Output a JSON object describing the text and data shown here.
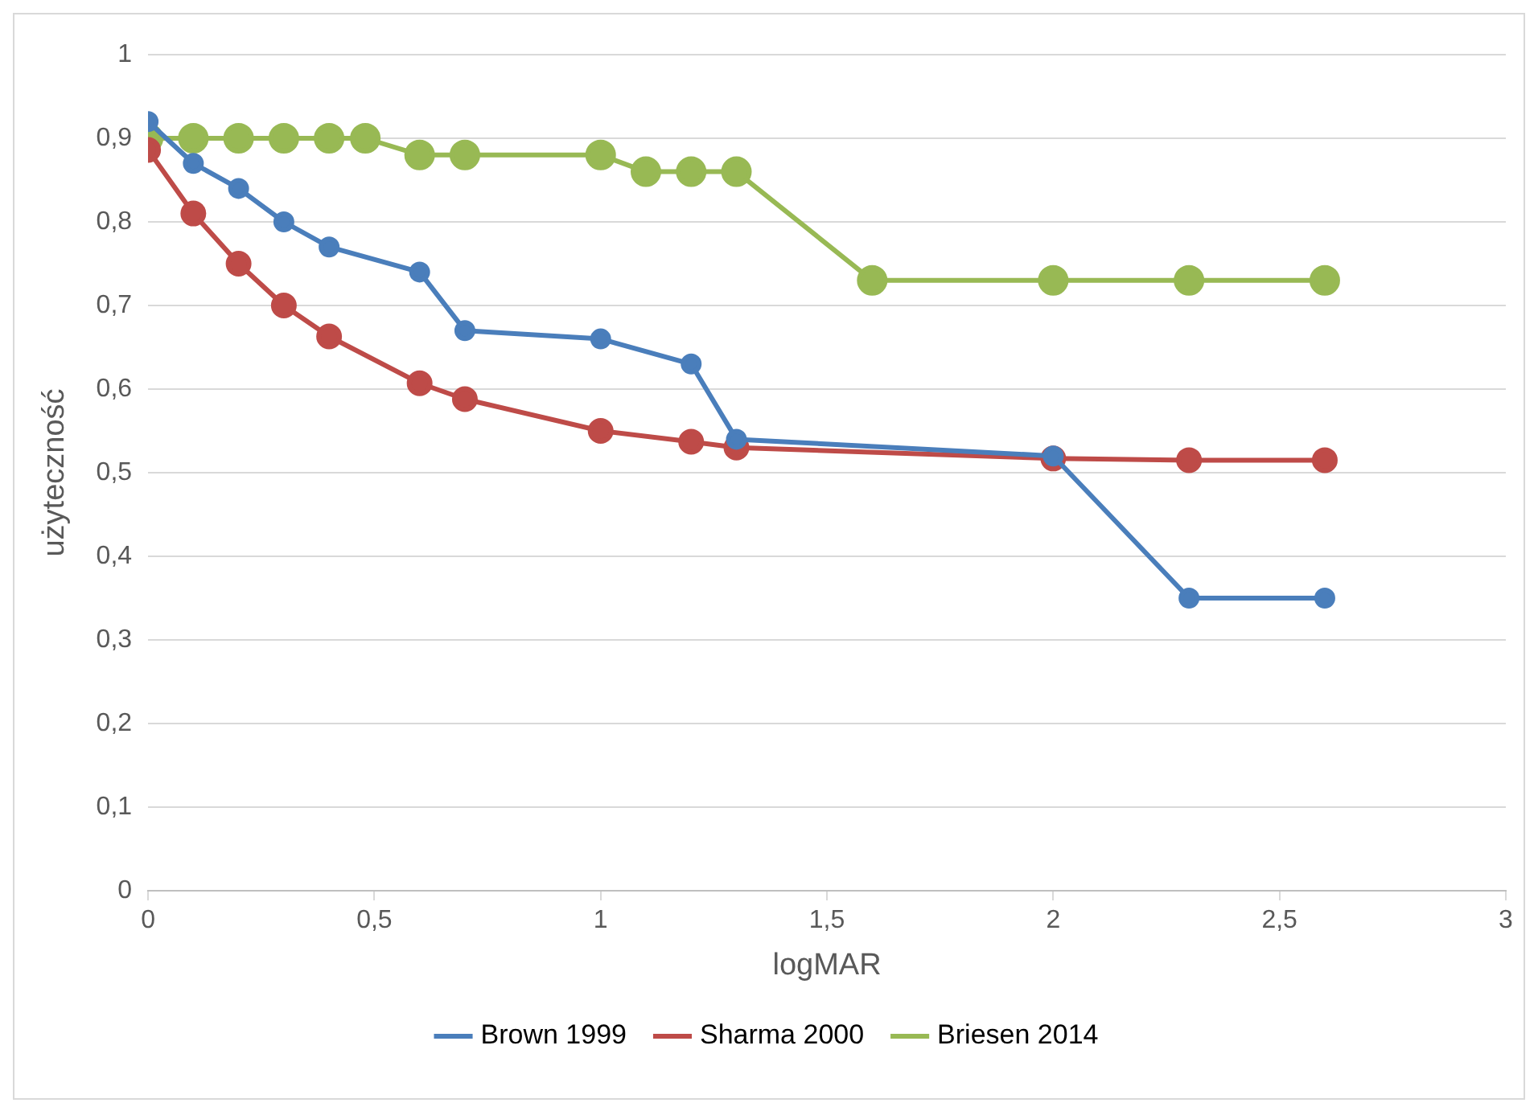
{
  "chart_data": {
    "type": "line",
    "xlabel": "logMAR",
    "ylabel": "użyteczność",
    "xlim": [
      0,
      3
    ],
    "ylim": [
      0,
      1
    ],
    "xticks": [
      0,
      {
        "value": 0.5,
        "label": "0,5"
      },
      1,
      {
        "value": 1.5,
        "label": "1,5"
      },
      2,
      {
        "value": 2.5,
        "label": "2,5"
      },
      3
    ],
    "yticks": [
      0,
      {
        "value": 0.1,
        "label": "0,1"
      },
      {
        "value": 0.2,
        "label": "0,2"
      },
      {
        "value": 0.3,
        "label": "0,3"
      },
      {
        "value": 0.4,
        "label": "0,4"
      },
      {
        "value": 0.5,
        "label": "0,5"
      },
      {
        "value": 0.6,
        "label": "0,6"
      },
      {
        "value": 0.7,
        "label": "0,7"
      },
      {
        "value": 0.8,
        "label": "0,8"
      },
      {
        "value": 0.9,
        "label": "0,9"
      },
      1
    ],
    "grid": "y",
    "legend": "bottom",
    "marker": "circle",
    "line_style": "solid",
    "series": [
      {
        "name": "Brown 1999",
        "color": "#4a7ebb",
        "x": [
          0,
          0.1,
          0.2,
          0.3,
          0.4,
          0.6,
          0.7,
          1,
          1.2,
          1.3,
          2,
          2.3,
          2.6
        ],
        "values": [
          0.92,
          0.87,
          0.84,
          0.8,
          0.77,
          0.74,
          0.67,
          0.66,
          0.63,
          0.54,
          0.52,
          0.35,
          0.35
        ]
      },
      {
        "name": "Sharma 2000",
        "color": "#be4b48",
        "x": [
          0,
          0.1,
          0.2,
          0.3,
          0.4,
          0.6,
          0.7,
          1,
          1.2,
          1.3,
          2,
          2.3,
          2.6
        ],
        "values": [
          0.886,
          0.81,
          0.75,
          0.7,
          0.663,
          0.607,
          0.588,
          0.55,
          0.537,
          0.53,
          0.517,
          0.515,
          0.515
        ]
      },
      {
        "name": "Briesen 2014",
        "color": "#98b954",
        "x": [
          0,
          0.1,
          0.2,
          0.3,
          0.4,
          0.48,
          0.6,
          0.7,
          1,
          1.1,
          1.2,
          1.3,
          1.6,
          2,
          2.3,
          2.6
        ],
        "values": [
          0.9,
          0.9,
          0.9,
          0.9,
          0.9,
          0.9,
          0.88,
          0.88,
          0.88,
          0.86,
          0.86,
          0.86,
          0.73,
          0.73,
          0.73,
          0.73
        ]
      }
    ]
  }
}
